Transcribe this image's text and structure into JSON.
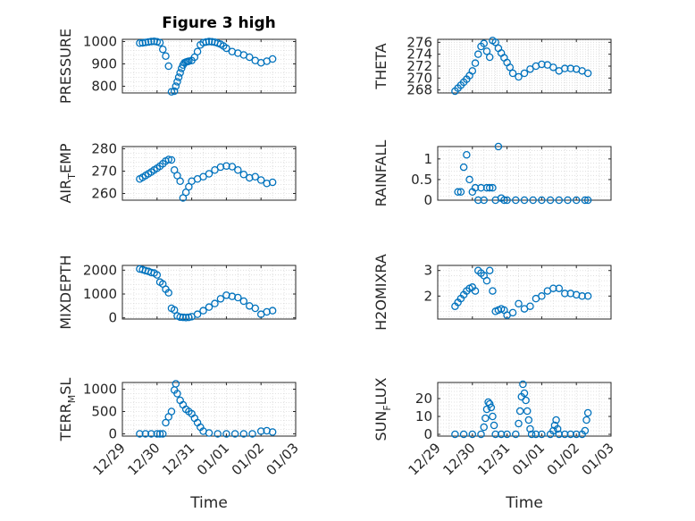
{
  "figure": {
    "title": "Figure 3 high",
    "xlabel": "Time",
    "x_ticks": [
      "12/29",
      "12/30",
      "12/31",
      "01/01",
      "01/02",
      "01/03"
    ],
    "x_range": [
      "12/29",
      "01/03"
    ],
    "marker": "open-circle",
    "marker_color": "#0072BD"
  },
  "chart_data": [
    {
      "type": "scatter",
      "ylabel": "PRESSURE",
      "ylim": [
        770,
        1010
      ],
      "yticks": [
        800,
        900,
        1000
      ],
      "grid": true,
      "x": [
        "12/29 12:00",
        "12/29 14:00",
        "12/29 16:00",
        "12/29 18:00",
        "12/29 20:00",
        "12/29 22:00",
        "12/30 00:00",
        "12/30 02:00",
        "12/30 04:00",
        "12/30 06:00",
        "12/30 08:00",
        "12/30 10:00",
        "12/30 12:00",
        "12/30 13:00",
        "12/30 14:00",
        "12/30 15:00",
        "12/30 16:00",
        "12/30 17:00",
        "12/30 18:00",
        "12/30 19:00",
        "12/30 20:00",
        "12/30 21:00",
        "12/30 22:00",
        "12/31 00:00",
        "12/31 02:00",
        "12/31 04:00",
        "12/31 06:00",
        "12/31 08:00",
        "12/31 10:00",
        "12/31 12:00",
        "12/31 14:00",
        "12/31 16:00",
        "12/31 18:00",
        "12/31 20:00",
        "12/31 22:00",
        "01/01 00:00",
        "01/01 04:00",
        "01/01 08:00",
        "01/01 12:00",
        "01/01 16:00",
        "01/01 20:00",
        "01/02 00:00",
        "01/02 04:00",
        "01/02 08:00"
      ],
      "y": [
        993,
        994,
        996,
        998,
        1000,
        1001,
        999,
        995,
        965,
        935,
        890,
        775,
        778,
        800,
        820,
        840,
        860,
        880,
        895,
        905,
        908,
        910,
        912,
        915,
        930,
        955,
        985,
        995,
        998,
        1000,
        999,
        997,
        993,
        988,
        980,
        970,
        955,
        948,
        940,
        930,
        915,
        905,
        912,
        922
      ]
    },
    {
      "type": "scatter",
      "ylabel": "THETA",
      "ylim": [
        267.5,
        276.5
      ],
      "yticks": [
        268,
        270,
        272,
        274,
        276
      ],
      "grid": true,
      "x": [
        "12/29 12:00",
        "12/29 14:00",
        "12/29 16:00",
        "12/29 18:00",
        "12/29 20:00",
        "12/29 22:00",
        "12/30 00:00",
        "12/30 02:00",
        "12/30 04:00",
        "12/30 06:00",
        "12/30 08:00",
        "12/30 10:00",
        "12/30 12:00",
        "12/30 14:00",
        "12/30 16:00",
        "12/30 18:00",
        "12/30 20:00",
        "12/30 22:00",
        "12/31 00:00",
        "12/31 02:00",
        "12/31 04:00",
        "12/31 08:00",
        "12/31 12:00",
        "12/31 16:00",
        "12/31 20:00",
        "01/01 00:00",
        "01/01 04:00",
        "01/01 08:00",
        "01/01 12:00",
        "01/01 16:00",
        "01/01 20:00",
        "01/02 00:00",
        "01/02 04:00",
        "01/02 08:00"
      ],
      "y": [
        267.8,
        268.3,
        268.8,
        269.3,
        269.8,
        270.4,
        271.2,
        272.5,
        274.0,
        275.3,
        275.8,
        274.5,
        273.5,
        276.3,
        276.0,
        275.0,
        274.2,
        273.4,
        272.6,
        271.8,
        270.8,
        270.2,
        270.8,
        271.5,
        272.0,
        272.3,
        272.2,
        271.8,
        271.2,
        271.6,
        271.6,
        271.5,
        271.2,
        270.8
      ]
    },
    {
      "type": "scatter",
      "ylabel": "AIR_TEMP",
      "ylim": [
        257,
        281
      ],
      "yticks": [
        260,
        270,
        280
      ],
      "grid": true,
      "x": [
        "12/29 12:00",
        "12/29 14:00",
        "12/29 16:00",
        "12/29 18:00",
        "12/29 20:00",
        "12/29 22:00",
        "12/30 00:00",
        "12/30 02:00",
        "12/30 04:00",
        "12/30 06:00",
        "12/30 08:00",
        "12/30 10:00",
        "12/30 12:00",
        "12/30 14:00",
        "12/30 16:00",
        "12/30 18:00",
        "12/30 20:00",
        "12/30 22:00",
        "12/31 00:00",
        "12/31 04:00",
        "12/31 08:00",
        "12/31 12:00",
        "12/31 16:00",
        "12/31 20:00",
        "01/01 00:00",
        "01/01 04:00",
        "01/01 08:00",
        "01/01 12:00",
        "01/01 16:00",
        "01/01 20:00",
        "01/02 00:00",
        "01/02 04:00",
        "01/02 08:00"
      ],
      "y": [
        266.5,
        267.2,
        268.0,
        268.8,
        269.6,
        270.5,
        271.3,
        272.2,
        273.3,
        274.5,
        275.2,
        275.0,
        270.5,
        268.0,
        265.5,
        258.0,
        260.5,
        263.0,
        265.5,
        266.5,
        267.5,
        268.8,
        270.5,
        271.8,
        272.3,
        272.0,
        270.5,
        268.5,
        267.0,
        267.5,
        266.0,
        264.5,
        265.0
      ]
    },
    {
      "type": "scatter",
      "ylabel": "RAINFALL",
      "ylim": [
        0,
        1.3
      ],
      "yticks": [
        0,
        0.5,
        1
      ],
      "grid": true,
      "x": [
        "12/29 14:00",
        "12/29 16:00",
        "12/29 18:00",
        "12/29 20:00",
        "12/29 22:00",
        "12/30 00:00",
        "12/30 02:00",
        "12/30 04:00",
        "12/30 06:00",
        "12/30 08:00",
        "12/30 10:00",
        "12/30 12:00",
        "12/30 14:00",
        "12/30 16:00",
        "12/30 18:00",
        "12/30 20:00",
        "12/30 22:00",
        "12/31 00:00",
        "12/31 06:00",
        "12/31 12:00",
        "12/31 18:00",
        "01/01 00:00",
        "01/01 06:00",
        "01/01 12:00",
        "01/01 18:00",
        "01/02 00:00",
        "01/02 06:00",
        "01/02 08:00"
      ],
      "y": [
        0.2,
        0.2,
        0.8,
        1.1,
        0.5,
        0.2,
        0.3,
        0.0,
        0.3,
        0.0,
        0.3,
        0.3,
        0.3,
        0.0,
        1.3,
        0.05,
        0.0,
        0.0,
        0.0,
        0.0,
        0.0,
        0.0,
        0.0,
        0.0,
        0.0,
        0.0,
        0.0,
        0.0
      ]
    },
    {
      "type": "scatter",
      "ylabel": "MIXDEPTH",
      "ylim": [
        -50,
        2200
      ],
      "yticks": [
        0,
        1000,
        2000
      ],
      "grid": true,
      "x": [
        "12/29 12:00",
        "12/29 14:00",
        "12/29 16:00",
        "12/29 18:00",
        "12/29 20:00",
        "12/29 22:00",
        "12/30 00:00",
        "12/30 02:00",
        "12/30 04:00",
        "12/30 06:00",
        "12/30 08:00",
        "12/30 10:00",
        "12/30 12:00",
        "12/30 14:00",
        "12/30 16:00",
        "12/30 18:00",
        "12/30 20:00",
        "12/30 22:00",
        "12/31 00:00",
        "12/31 04:00",
        "12/31 08:00",
        "12/31 12:00",
        "12/31 16:00",
        "12/31 20:00",
        "01/01 00:00",
        "01/01 04:00",
        "01/01 08:00",
        "01/01 12:00",
        "01/01 16:00",
        "01/01 20:00",
        "01/02 00:00",
        "01/02 04:00",
        "01/02 08:00"
      ],
      "y": [
        2050,
        2020,
        1980,
        1950,
        1900,
        1880,
        1800,
        1500,
        1420,
        1200,
        1050,
        400,
        330,
        80,
        30,
        20,
        10,
        20,
        50,
        150,
        300,
        450,
        600,
        800,
        950,
        900,
        850,
        700,
        500,
        400,
        150,
        250,
        300
      ]
    },
    {
      "type": "scatter",
      "ylabel": "H2OMIXRA",
      "ylim": [
        1.1,
        3.2
      ],
      "yticks": [
        2,
        3
      ],
      "grid": true,
      "x": [
        "12/29 12:00",
        "12/29 14:00",
        "12/29 16:00",
        "12/29 18:00",
        "12/29 20:00",
        "12/29 22:00",
        "12/30 00:00",
        "12/30 02:00",
        "12/30 04:00",
        "12/30 06:00",
        "12/30 08:00",
        "12/30 10:00",
        "12/30 12:00",
        "12/30 14:00",
        "12/30 16:00",
        "12/30 18:00",
        "12/30 20:00",
        "12/30 22:00",
        "12/31 00:00",
        "12/31 04:00",
        "12/31 08:00",
        "12/31 12:00",
        "12/31 16:00",
        "12/31 20:00",
        "01/01 00:00",
        "01/01 04:00",
        "01/01 08:00",
        "01/01 12:00",
        "01/01 16:00",
        "01/01 20:00",
        "01/02 00:00",
        "01/02 04:00",
        "01/02 08:00"
      ],
      "y": [
        1.6,
        1.75,
        1.9,
        2.05,
        2.2,
        2.3,
        2.35,
        2.2,
        3.0,
        2.9,
        2.8,
        2.6,
        3.0,
        2.2,
        1.4,
        1.45,
        1.5,
        1.45,
        1.25,
        1.35,
        1.7,
        1.5,
        1.6,
        1.9,
        2.0,
        2.2,
        2.3,
        2.3,
        2.1,
        2.1,
        2.05,
        2.0,
        2.0
      ]
    },
    {
      "type": "scatter",
      "ylabel": "TERR_MSL",
      "ylim": [
        -50,
        1150
      ],
      "yticks": [
        0,
        500,
        1000
      ],
      "grid": true,
      "x": [
        "12/29 12:00",
        "12/29 16:00",
        "12/29 20:00",
        "12/30 00:00",
        "12/30 02:00",
        "12/30 04:00",
        "12/30 06:00",
        "12/30 08:00",
        "12/30 10:00",
        "12/30 12:00",
        "12/30 13:00",
        "12/30 14:00",
        "12/30 16:00",
        "12/30 18:00",
        "12/30 20:00",
        "12/30 22:00",
        "12/31 00:00",
        "12/31 02:00",
        "12/31 04:00",
        "12/31 06:00",
        "12/31 08:00",
        "12/31 12:00",
        "12/31 18:00",
        "01/01 00:00",
        "01/01 06:00",
        "01/01 12:00",
        "01/01 18:00",
        "01/02 00:00",
        "01/02 04:00",
        "01/02 08:00"
      ],
      "y": [
        0,
        0,
        0,
        0,
        0,
        0,
        250,
        380,
        500,
        980,
        1120,
        900,
        750,
        650,
        550,
        500,
        450,
        350,
        250,
        150,
        60,
        20,
        0,
        0,
        0,
        0,
        0,
        60,
        70,
        40
      ]
    },
    {
      "type": "scatter",
      "ylabel": "SUN_FLUX",
      "ylim": [
        -1,
        29
      ],
      "yticks": [
        0,
        10,
        20
      ],
      "grid": true,
      "x": [
        "12/29 12:00",
        "12/29 18:00",
        "12/30 00:00",
        "12/30 06:00",
        "12/30 08:00",
        "12/30 09:00",
        "12/30 10:00",
        "12/30 11:00",
        "12/30 12:00",
        "12/30 13:00",
        "12/30 14:00",
        "12/30 15:00",
        "12/30 16:00",
        "12/30 20:00",
        "12/31 00:00",
        "12/31 06:00",
        "12/31 08:00",
        "12/31 09:00",
        "12/31 10:00",
        "12/31 11:00",
        "12/31 12:00",
        "12/31 13:00",
        "12/31 14:00",
        "12/31 15:00",
        "12/31 16:00",
        "12/31 17:00",
        "12/31 20:00",
        "01/01 00:00",
        "01/01 06:00",
        "01/01 08:00",
        "01/01 09:00",
        "01/01 10:00",
        "01/01 11:00",
        "01/01 12:00",
        "01/01 16:00",
        "01/01 20:00",
        "01/02 00:00",
        "01/02 04:00",
        "01/02 06:00",
        "01/02 07:00",
        "01/02 08:00"
      ],
      "y": [
        0,
        0,
        0,
        0,
        4,
        9,
        14,
        18,
        17,
        15,
        10,
        5,
        0,
        0,
        0,
        0,
        6,
        13,
        21,
        28,
        23,
        19,
        13,
        8,
        3,
        0,
        0,
        0,
        0,
        2,
        5,
        8,
        3,
        0,
        0,
        0,
        0,
        0,
        2,
        8,
        12
      ]
    }
  ]
}
